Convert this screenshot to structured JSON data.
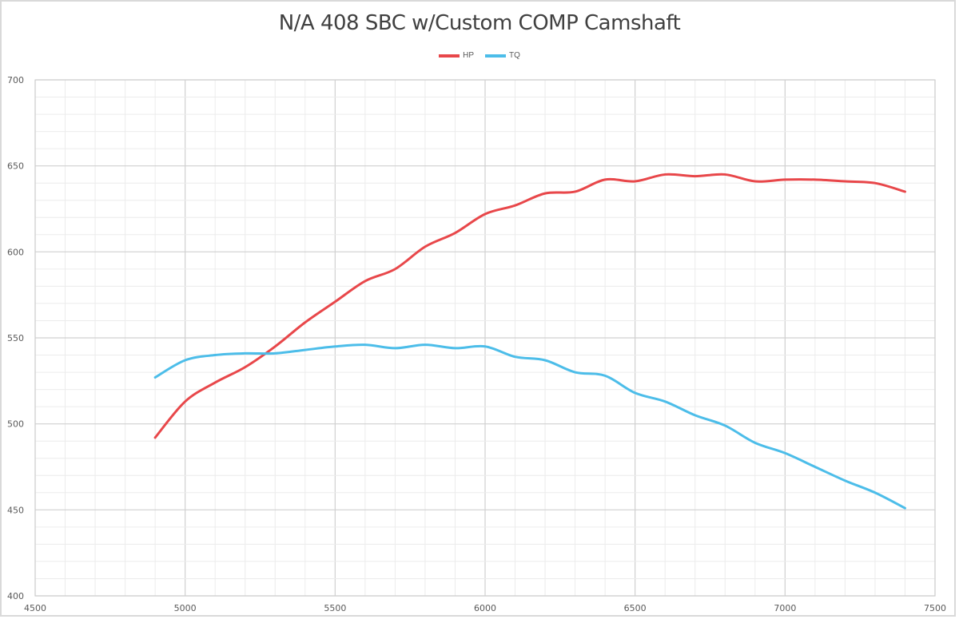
{
  "chart_data": {
    "type": "line",
    "title": "N/A 408 SBC w/Custom COMP Camshaft",
    "xlabel": "",
    "ylabel": "",
    "xlim": [
      4500,
      7500
    ],
    "ylim": [
      400,
      700
    ],
    "x_ticks": [
      "4500",
      "5000",
      "5500",
      "6000",
      "6500",
      "7000",
      "7500"
    ],
    "y_ticks": [
      "400",
      "450",
      "500",
      "550",
      "600",
      "650",
      "700"
    ],
    "grid": true,
    "legend": "top-center",
    "x": [
      4900,
      5000,
      5100,
      5200,
      5300,
      5400,
      5500,
      5600,
      5700,
      5800,
      5900,
      6000,
      6100,
      6200,
      6300,
      6400,
      6500,
      6600,
      6700,
      6800,
      6900,
      7000,
      7100,
      7200,
      7300,
      7400
    ],
    "series": [
      {
        "name": "HP",
        "color": "#e8474a",
        "values": [
          492,
          513,
          524,
          533,
          545,
          559,
          571,
          583,
          590,
          603,
          611,
          622,
          627,
          634,
          635,
          642,
          641,
          645,
          644,
          645,
          641,
          642,
          642,
          641,
          640,
          635
        ]
      },
      {
        "name": "TQ",
        "color": "#4cbde9",
        "values": [
          527,
          537,
          540,
          541,
          541,
          543,
          545,
          546,
          544,
          546,
          544,
          545,
          539,
          537,
          530,
          528,
          518,
          513,
          505,
          499,
          489,
          483,
          475,
          467,
          460,
          451
        ]
      }
    ]
  }
}
